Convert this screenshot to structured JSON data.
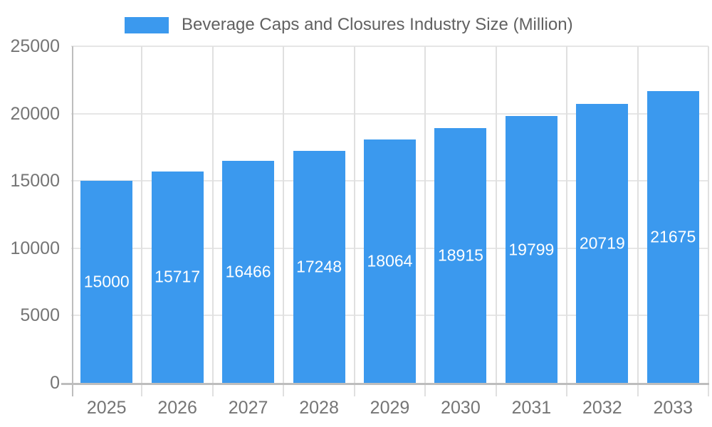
{
  "page": {
    "background": "#FFFFFF"
  },
  "legend": {
    "label": "Beverage Caps and Closures Industry Size (Million)",
    "position": "top"
  },
  "colors": {
    "bar": "#3B99EE",
    "bar_label": "#FFFFFF",
    "axis_label": "#757575",
    "legend_label": "#616161",
    "gridline": "#E6E6E6",
    "boundary_line": "#E0E0E0",
    "axis_line": "#BDBDBD",
    "background": "#FFFFFF"
  },
  "chart_data": {
    "type": "bar",
    "title": "Beverage Caps and Closures Industry Size (Million)",
    "series": [
      {
        "name": "Beverage Caps and Closures Industry Size (Million)",
        "values": [
          15000,
          15717,
          16466,
          17248,
          18064,
          18915,
          19799,
          20719,
          21675
        ]
      }
    ],
    "categories": [
      "2025",
      "2026",
      "2027",
      "2028",
      "2029",
      "2030",
      "2031",
      "2032",
      "2033"
    ],
    "values": [
      15000,
      15717,
      16466,
      17248,
      18064,
      18915,
      19799,
      20719,
      21675
    ],
    "xlabel": "",
    "ylabel": "",
    "ylim": [
      0,
      25000
    ],
    "yticks": [
      0,
      5000,
      10000,
      15000,
      20000,
      25000
    ],
    "grid": true,
    "legend_position": "top",
    "value_labels": "centered inside bars, white text"
  }
}
